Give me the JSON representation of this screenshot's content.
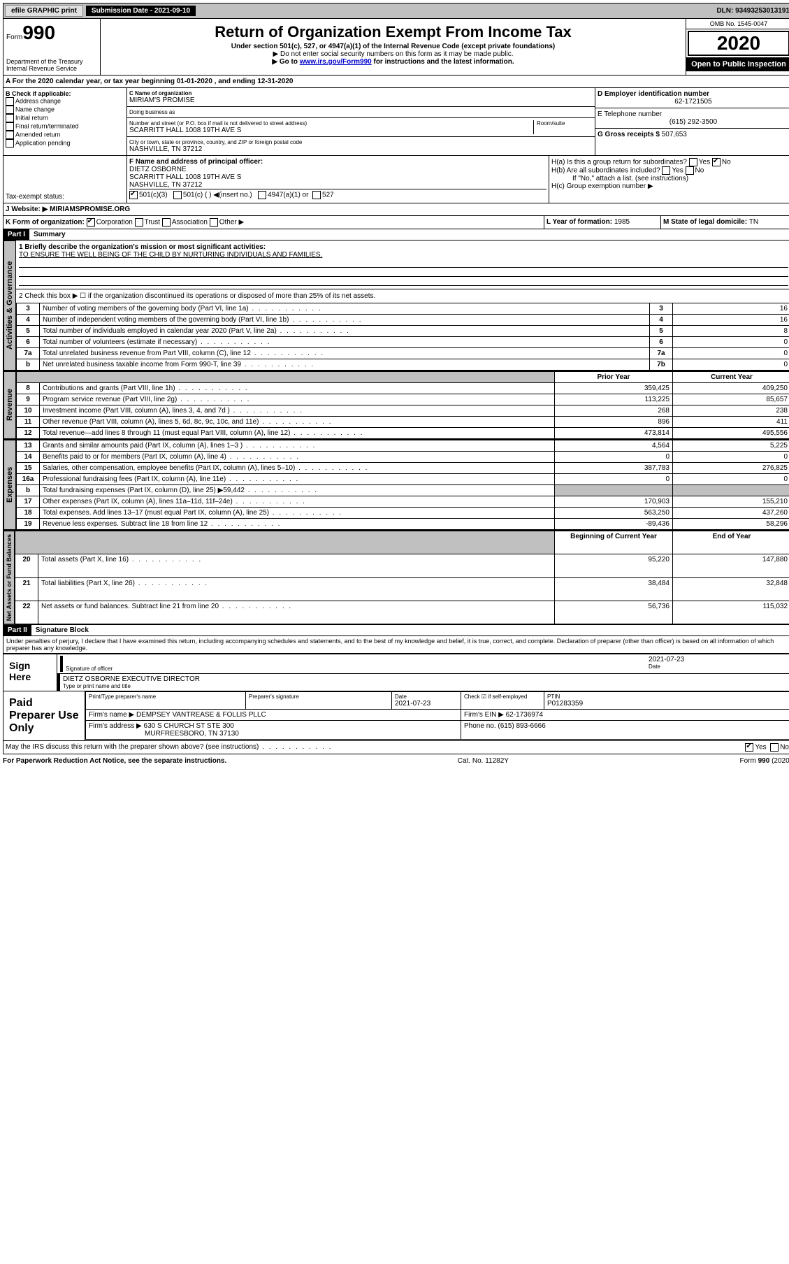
{
  "topbar": {
    "efile": "efile GRAPHIC print",
    "submission_label": "Submission Date - ",
    "submission_date": "2021-09-10",
    "dln_label": "DLN: ",
    "dln": "93493253013191"
  },
  "header": {
    "form_word": "Form",
    "form_num": "990",
    "dept": "Department of the Treasury\nInternal Revenue Service",
    "title": "Return of Organization Exempt From Income Tax",
    "subtitle": "Under section 501(c), 527, or 4947(a)(1) of the Internal Revenue Code (except private foundations)",
    "note1": "▶ Do not enter social security numbers on this form as it may be made public.",
    "note2_pre": "▶ Go to ",
    "note2_link": "www.irs.gov/Form990",
    "note2_post": " for instructions and the latest information.",
    "omb": "OMB No. 1545-0047",
    "year": "2020",
    "open": "Open to Public Inspection"
  },
  "line_a": "A For the 2020 calendar year, or tax year beginning 01-01-2020    , and ending 12-31-2020",
  "box_b": {
    "title": "B Check if applicable:",
    "opts": [
      "Address change",
      "Name change",
      "Initial return",
      "Final return/terminated",
      "Amended return",
      "Application pending"
    ]
  },
  "box_c": {
    "label": "C Name of organization",
    "name": "MIRIAM'S PROMISE",
    "dba_label": "Doing business as",
    "street_label": "Number and street (or P.O. box if mail is not delivered to street address)",
    "room_label": "Room/suite",
    "street": "SCARRITT HALL 1008 19TH AVE S",
    "city_label": "City or town, state or province, country, and ZIP or foreign postal code",
    "city": "NASHVILLE, TN  37212"
  },
  "box_d": {
    "label": "D Employer identification number",
    "value": "62-1721505"
  },
  "box_e": {
    "label": "E Telephone number",
    "value": "(615) 292-3500"
  },
  "box_g": {
    "label": "G Gross receipts $ ",
    "value": "507,653"
  },
  "box_f": {
    "label": "F Name and address of principal officer:",
    "name": "DIETZ OSBORNE",
    "addr1": "SCARRITT HALL 1008 19TH AVE S",
    "addr2": "NASHVILLE, TN  37212"
  },
  "box_h": {
    "ha": "H(a)  Is this a group return for subordinates?",
    "hb": "H(b)  Are all subordinates included?",
    "hb_note": "If \"No,\" attach a list. (see instructions)",
    "hc": "H(c)  Group exemption number ▶"
  },
  "tax_exempt": {
    "label": "Tax-exempt status:",
    "opt1": "501(c)(3)",
    "opt2": "501(c) (  ) ◀(insert no.)",
    "opt3": "4947(a)(1) or",
    "opt4": "527"
  },
  "line_j": {
    "label": "J    Website: ▶",
    "value": "MIRIAMSPROMISE.ORG"
  },
  "line_k": {
    "label": "K Form of organization:",
    "opts": [
      "Corporation",
      "Trust",
      "Association",
      "Other ▶"
    ],
    "l_label": "L Year of formation: ",
    "l_val": "1985",
    "m_label": "M State of legal domicile: ",
    "m_val": "TN"
  },
  "part1": {
    "num": "Part I",
    "title": "Summary",
    "line1_label": "1   Briefly describe the organization's mission or most significant activities:",
    "mission": "TO ENSURE THE WELL BEING OF THE CHILD BY NURTURING INDIVIDUALS AND FAMILIES.",
    "line2": "2   Check this box ▶ ☐  if the organization discontinued its operations or disposed of more than 25% of its net assets.",
    "vtab_gov": "Activities & Governance",
    "vtab_rev": "Revenue",
    "vtab_exp": "Expenses",
    "vtab_net": "Net Assets or Fund Balances",
    "col_prior": "Prior Year",
    "col_current": "Current Year",
    "col_begin": "Beginning of Current Year",
    "col_end": "End of Year",
    "gov_rows": [
      {
        "n": "3",
        "t": "Number of voting members of the governing body (Part VI, line 1a)",
        "r": "3",
        "v": "16"
      },
      {
        "n": "4",
        "t": "Number of independent voting members of the governing body (Part VI, line 1b)",
        "r": "4",
        "v": "16"
      },
      {
        "n": "5",
        "t": "Total number of individuals employed in calendar year 2020 (Part V, line 2a)",
        "r": "5",
        "v": "8"
      },
      {
        "n": "6",
        "t": "Total number of volunteers (estimate if necessary)",
        "r": "6",
        "v": "0"
      },
      {
        "n": "7a",
        "t": "Total unrelated business revenue from Part VIII, column (C), line 12",
        "r": "7a",
        "v": "0"
      },
      {
        "n": "b",
        "t": "Net unrelated business taxable income from Form 990-T, line 39",
        "r": "7b",
        "v": "0"
      }
    ],
    "rev_rows": [
      {
        "n": "8",
        "t": "Contributions and grants (Part VIII, line 1h)",
        "p": "359,425",
        "c": "409,250"
      },
      {
        "n": "9",
        "t": "Program service revenue (Part VIII, line 2g)",
        "p": "113,225",
        "c": "85,657"
      },
      {
        "n": "10",
        "t": "Investment income (Part VIII, column (A), lines 3, 4, and 7d )",
        "p": "268",
        "c": "238"
      },
      {
        "n": "11",
        "t": "Other revenue (Part VIII, column (A), lines 5, 6d, 8c, 9c, 10c, and 11e)",
        "p": "896",
        "c": "411"
      },
      {
        "n": "12",
        "t": "Total revenue—add lines 8 through 11 (must equal Part VIII, column (A), line 12)",
        "p": "473,814",
        "c": "495,556"
      }
    ],
    "exp_rows": [
      {
        "n": "13",
        "t": "Grants and similar amounts paid (Part IX, column (A), lines 1–3 )",
        "p": "4,564",
        "c": "5,225"
      },
      {
        "n": "14",
        "t": "Benefits paid to or for members (Part IX, column (A), line 4)",
        "p": "0",
        "c": "0"
      },
      {
        "n": "15",
        "t": "Salaries, other compensation, employee benefits (Part IX, column (A), lines 5–10)",
        "p": "387,783",
        "c": "276,825"
      },
      {
        "n": "16a",
        "t": "Professional fundraising fees (Part IX, column (A), line 11e)",
        "p": "0",
        "c": "0"
      },
      {
        "n": "b",
        "t": "Total fundraising expenses (Part IX, column (D), line 25) ▶59,442",
        "p": "",
        "c": "",
        "grey": true
      },
      {
        "n": "17",
        "t": "Other expenses (Part IX, column (A), lines 11a–11d, 11f–24e)",
        "p": "170,903",
        "c": "155,210"
      },
      {
        "n": "18",
        "t": "Total expenses. Add lines 13–17 (must equal Part IX, column (A), line 25)",
        "p": "563,250",
        "c": "437,260"
      },
      {
        "n": "19",
        "t": "Revenue less expenses. Subtract line 18 from line 12",
        "p": "-89,436",
        "c": "58,296"
      }
    ],
    "net_rows": [
      {
        "n": "20",
        "t": "Total assets (Part X, line 16)",
        "p": "95,220",
        "c": "147,880"
      },
      {
        "n": "21",
        "t": "Total liabilities (Part X, line 26)",
        "p": "38,484",
        "c": "32,848"
      },
      {
        "n": "22",
        "t": "Net assets or fund balances. Subtract line 21 from line 20",
        "p": "56,736",
        "c": "115,032"
      }
    ]
  },
  "part2": {
    "num": "Part II",
    "title": "Signature Block",
    "penalty": "Under penalties of perjury, I declare that I have examined this return, including accompanying schedules and statements, and to the best of my knowledge and belief, it is true, correct, and complete. Declaration of preparer (other than officer) is based on all information of which preparer has any knowledge.",
    "sign_here": "Sign Here",
    "sig_officer": "Signature of officer",
    "sig_date": "2021-07-23",
    "date_label": "Date",
    "officer_name": "DIETZ OSBORNE  EXECUTIVE DIRECTOR",
    "officer_label": "Type or print name and title",
    "paid": "Paid Preparer Use Only",
    "prep_name_label": "Print/Type preparer's name",
    "prep_sig_label": "Preparer's signature",
    "prep_date_label": "Date",
    "prep_date": "2021-07-23",
    "check_label": "Check ☑ if self-employed",
    "ptin_label": "PTIN",
    "ptin": "P01283359",
    "firm_name_label": "Firm's name    ▶",
    "firm_name": "DEMPSEY VANTREASE & FOLLIS PLLC",
    "firm_ein_label": "Firm's EIN ▶",
    "firm_ein": "62-1736974",
    "firm_addr_label": "Firm's address ▶",
    "firm_addr1": "630 S CHURCH ST STE 300",
    "firm_addr2": "MURFREESBORO, TN  37130",
    "phone_label": "Phone no. ",
    "phone": "(615) 893-6666",
    "discuss": "May the IRS discuss this return with the preparer shown above? (see instructions)",
    "yes": "Yes",
    "no": "No"
  },
  "footer": {
    "left": "For Paperwork Reduction Act Notice, see the separate instructions.",
    "mid": "Cat. No. 11282Y",
    "right": "Form 990 (2020)"
  }
}
